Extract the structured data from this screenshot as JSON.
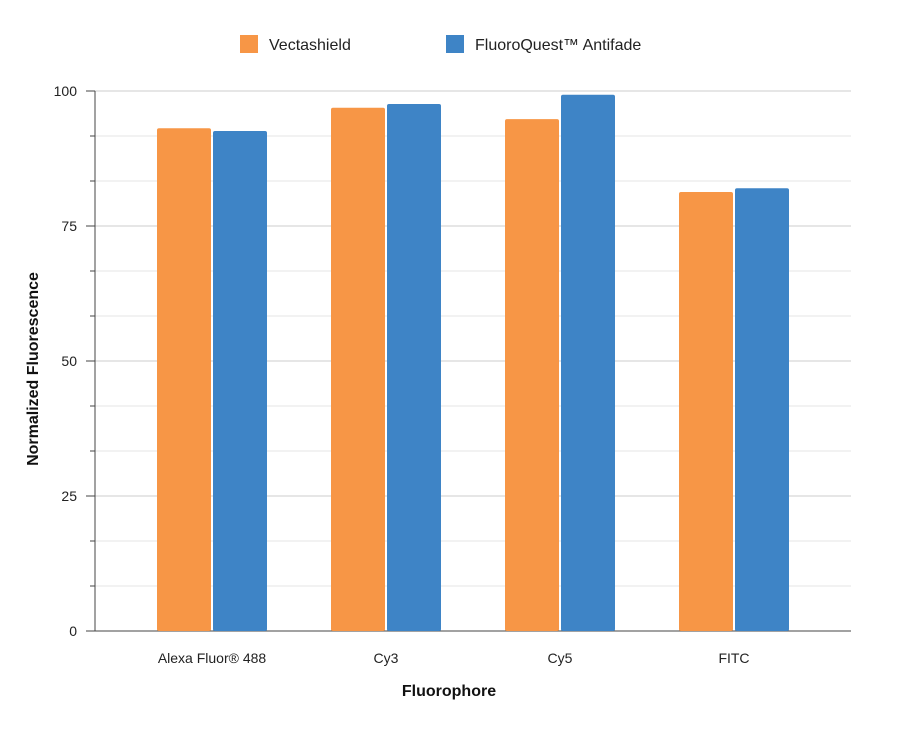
{
  "chart_data": {
    "type": "bar",
    "title": "",
    "xlabel": "Fluorophore",
    "ylabel": "Normalized Fluorescence",
    "categories": [
      "Alexa Fluor® 488",
      "Cy3",
      "Cy5",
      "FITC"
    ],
    "series": [
      {
        "name": "Vectashield",
        "color": "#f79646",
        "values": [
          93.1,
          96.9,
          94.8,
          81.3
        ]
      },
      {
        "name": "FluoroQuest™ Antifade",
        "color": "#3e84c6",
        "values": [
          92.6,
          97.6,
          99.3,
          82.0
        ]
      }
    ],
    "ylim": [
      0,
      100
    ],
    "yticks": [
      "0",
      "25",
      "50",
      "75",
      "100"
    ],
    "grid": true,
    "legend": "top"
  }
}
